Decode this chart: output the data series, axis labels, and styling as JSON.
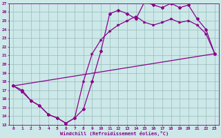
{
  "xlabel": "Windchill (Refroidissement éolien,°C)",
  "bg_color": "#cce8e8",
  "line_color": "#880088",
  "grid_color": "#99bbbb",
  "xlim": [
    -0.5,
    23.5
  ],
  "ylim": [
    13,
    27
  ],
  "yticks": [
    13,
    14,
    15,
    16,
    17,
    18,
    19,
    20,
    21,
    22,
    23,
    24,
    25,
    26,
    27
  ],
  "xticks": [
    0,
    1,
    2,
    3,
    4,
    5,
    6,
    7,
    8,
    9,
    10,
    11,
    12,
    13,
    14,
    15,
    16,
    17,
    18,
    19,
    20,
    21,
    22,
    23
  ],
  "line1_x": [
    0,
    1,
    2,
    3,
    4,
    5,
    6,
    7,
    8,
    9,
    10,
    11,
    12,
    13,
    14,
    15,
    16,
    17,
    18,
    19,
    20,
    21,
    22,
    23
  ],
  "line1_y": [
    17.5,
    17.0,
    15.8,
    15.2,
    14.2,
    13.8,
    13.2,
    13.8,
    14.8,
    18.0,
    21.5,
    25.8,
    26.2,
    25.8,
    25.2,
    27.2,
    26.8,
    26.5,
    27.0,
    26.5,
    26.8,
    25.2,
    24.0,
    21.2
  ],
  "line2_x": [
    0,
    1,
    2,
    3,
    4,
    5,
    6,
    7,
    8,
    9,
    10,
    11,
    12,
    13,
    14,
    15,
    16,
    17,
    18,
    19,
    20,
    21,
    22,
    23
  ],
  "line2_y": [
    17.5,
    16.8,
    15.8,
    15.2,
    14.2,
    13.8,
    13.2,
    13.8,
    18.0,
    21.2,
    22.8,
    23.8,
    24.5,
    25.0,
    25.5,
    24.8,
    24.5,
    24.8,
    25.2,
    24.8,
    25.0,
    24.5,
    23.5,
    21.2
  ],
  "line3_x": [
    0,
    23
  ],
  "line3_y": [
    17.5,
    21.2
  ]
}
